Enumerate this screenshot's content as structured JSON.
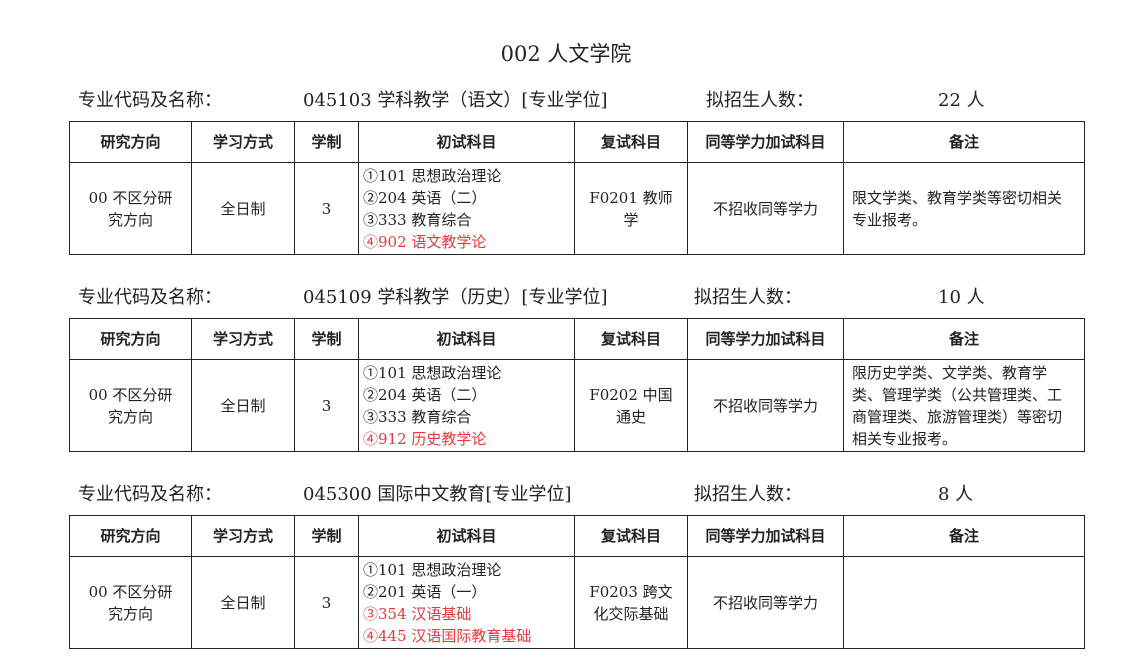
{
  "page_title": "002 人文学院",
  "labels": {
    "major": "专业代码及名称：",
    "quota": "拟招生人数：",
    "headers": [
      "研究方向",
      "学习方式",
      "学制",
      "初试科目",
      "复试科目",
      "同等学力加试科目",
      "备注"
    ]
  },
  "colors": {
    "highlight": "#e63a3a",
    "text": "#222222"
  },
  "sections": [
    {
      "major": "045103 学科教学（语文）[专业学位]",
      "quota": "22 人",
      "row": {
        "direction": "00 不区分研究方向",
        "mode": "全日制",
        "years": "3",
        "exams": [
          {
            "text": "①101 思想政治理论",
            "red": false
          },
          {
            "text": "②204 英语（二）",
            "red": false
          },
          {
            "text": "③333 教育综合",
            "red": false
          },
          {
            "text": "④902 语文教学论",
            "red": true
          }
        ],
        "retest": "F0201 教师学",
        "equiv": "不招收同等学力",
        "note": "限文学类、教育学类等密切相关专业报考。"
      }
    },
    {
      "major": "045109 学科教学（历史）[专业学位]",
      "quota": "10 人",
      "row": {
        "direction": "00 不区分研究方向",
        "mode": "全日制",
        "years": "3",
        "exams": [
          {
            "text": "①101 思想政治理论",
            "red": false
          },
          {
            "text": "②204 英语（二）",
            "red": false
          },
          {
            "text": "③333 教育综合",
            "red": false
          },
          {
            "text": "④912 历史教学论",
            "red": true
          }
        ],
        "retest": "F0202 中国通史",
        "equiv": "不招收同等学力",
        "note": "限历史学类、文学类、教育学类、管理学类（公共管理类、工商管理类、旅游管理类）等密切相关专业报考。"
      }
    },
    {
      "major": "045300 国际中文教育[专业学位]",
      "quota": "8 人",
      "row": {
        "direction": "00 不区分研究方向",
        "mode": "全日制",
        "years": "3",
        "exams": [
          {
            "text": "①101 思想政治理论",
            "red": false
          },
          {
            "text": "②201 英语（一）",
            "red": false
          },
          {
            "text": "③354 汉语基础",
            "red": true
          },
          {
            "text": "④445 汉语国际教育基础",
            "red": true
          }
        ],
        "retest": "F0203 跨文化交际基础",
        "equiv": "不招收同等学力",
        "note": ""
      }
    }
  ]
}
